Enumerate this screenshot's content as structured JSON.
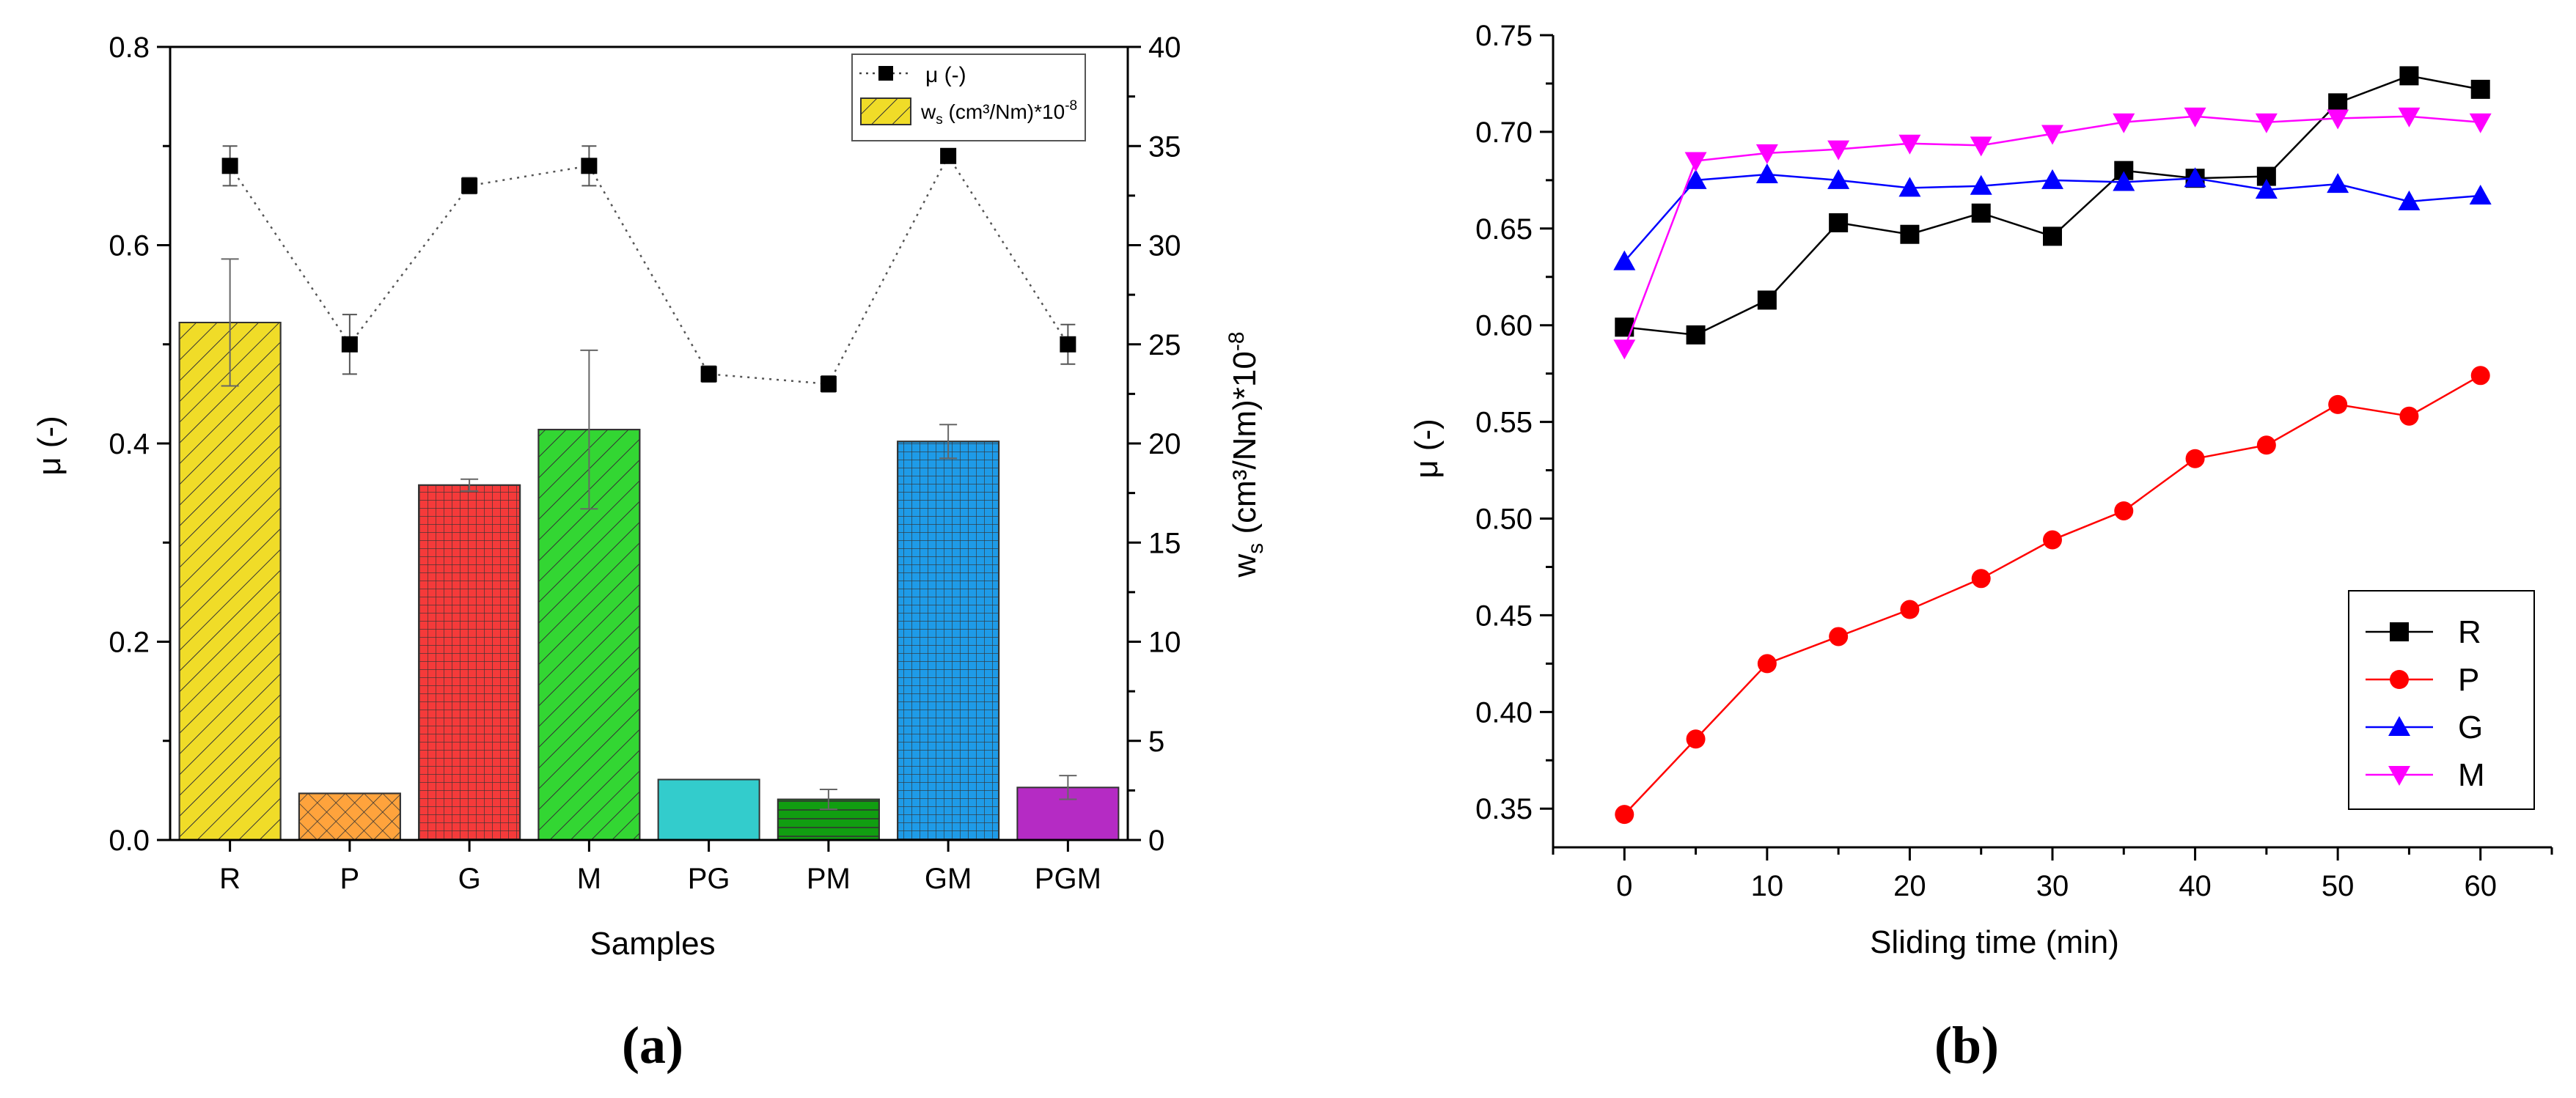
{
  "chart_data": [
    {
      "type": "bar",
      "panel_label": "(a)",
      "xlabel": "Samples",
      "ylabel": "μ (-)",
      "y2label_parts": {
        "w": "w",
        "sub": "s",
        "unit": " (cm³/Nm)*10",
        "sup": "-8"
      },
      "categories": [
        "R",
        "P",
        "G",
        "M",
        "PG",
        "PM",
        "GM",
        "PGM"
      ],
      "ylim": [
        0,
        0.8
      ],
      "yticks": [
        "0.0",
        "0.2",
        "0.4",
        "0.6",
        "0.8"
      ],
      "y2lim": [
        0,
        40
      ],
      "y2ticks": [
        "0",
        "5",
        "10",
        "15",
        "20",
        "25",
        "30",
        "35",
        "40"
      ],
      "series": [
        {
          "name": "w_s (cm³/Nm)*10⁻⁸",
          "axis": "right",
          "kind": "bar",
          "values": [
            26.1,
            2.35,
            17.9,
            20.7,
            3.05,
            2.05,
            20.1,
            2.65
          ],
          "errors": [
            3.2,
            0,
            0.3,
            4.0,
            0,
            0.5,
            0.85,
            0.6
          ],
          "colors": [
            "#F0DC28",
            "#FFA33C",
            "#F53A3A",
            "#33D633",
            "#33CCCC",
            "#119E11",
            "#1E9BE8",
            "#B52BC4"
          ],
          "patterns": [
            "diag",
            "cross",
            "grid",
            "diag",
            "none",
            "hlines",
            "grid",
            "none"
          ]
        },
        {
          "name": "μ (-)",
          "axis": "left",
          "kind": "line",
          "values": [
            0.68,
            0.5,
            0.66,
            0.68,
            0.47,
            0.46,
            0.69,
            0.5
          ],
          "errors": [
            0.02,
            0.03,
            0.008,
            0.02,
            0.008,
            0.008,
            0,
            0.02
          ]
        }
      ],
      "legend": {
        "position": "top-right",
        "mu_label": "μ (-)",
        "ws_w": "w",
        "ws_sub": "s",
        "ws_unit": " (cm³/Nm)*10",
        "ws_sup": "-8"
      }
    },
    {
      "type": "line",
      "panel_label": "(b)",
      "xlabel": "Sliding time (min)",
      "ylabel": "μ (-)",
      "xlim": [
        -5,
        65
      ],
      "xticks": [
        0,
        10,
        20,
        30,
        40,
        50,
        60
      ],
      "ylim": [
        0.33,
        0.75
      ],
      "yticks": [
        "0.35",
        "0.40",
        "0.45",
        "0.50",
        "0.55",
        "0.60",
        "0.65",
        "0.70",
        "0.75"
      ],
      "x": [
        0,
        5,
        10,
        15,
        20,
        25,
        30,
        35,
        40,
        45,
        50,
        55,
        60
      ],
      "series": [
        {
          "name": "R",
          "color": "#000000",
          "marker": "square",
          "values": [
            0.599,
            0.595,
            0.613,
            0.653,
            0.647,
            0.658,
            0.646,
            0.68,
            0.676,
            0.677,
            0.715,
            0.729,
            0.722
          ]
        },
        {
          "name": "P",
          "color": "#FF0000",
          "marker": "circle",
          "values": [
            0.347,
            0.386,
            0.425,
            0.439,
            0.453,
            0.469,
            0.489,
            0.504,
            0.531,
            0.538,
            0.559,
            0.553,
            0.574
          ]
        },
        {
          "name": "G",
          "color": "#0000FF",
          "marker": "triangle-up",
          "values": [
            0.633,
            0.675,
            0.678,
            0.675,
            0.671,
            0.672,
            0.675,
            0.674,
            0.676,
            0.67,
            0.673,
            0.664,
            0.667
          ]
        },
        {
          "name": "M",
          "color": "#FF00FF",
          "marker": "triangle-down",
          "values": [
            0.588,
            0.685,
            0.689,
            0.691,
            0.694,
            0.693,
            0.699,
            0.705,
            0.708,
            0.705,
            0.707,
            0.708,
            0.705
          ]
        }
      ],
      "legend": {
        "position": "bottom-right",
        "entries": [
          "R",
          "P",
          "G",
          "M"
        ]
      }
    }
  ]
}
